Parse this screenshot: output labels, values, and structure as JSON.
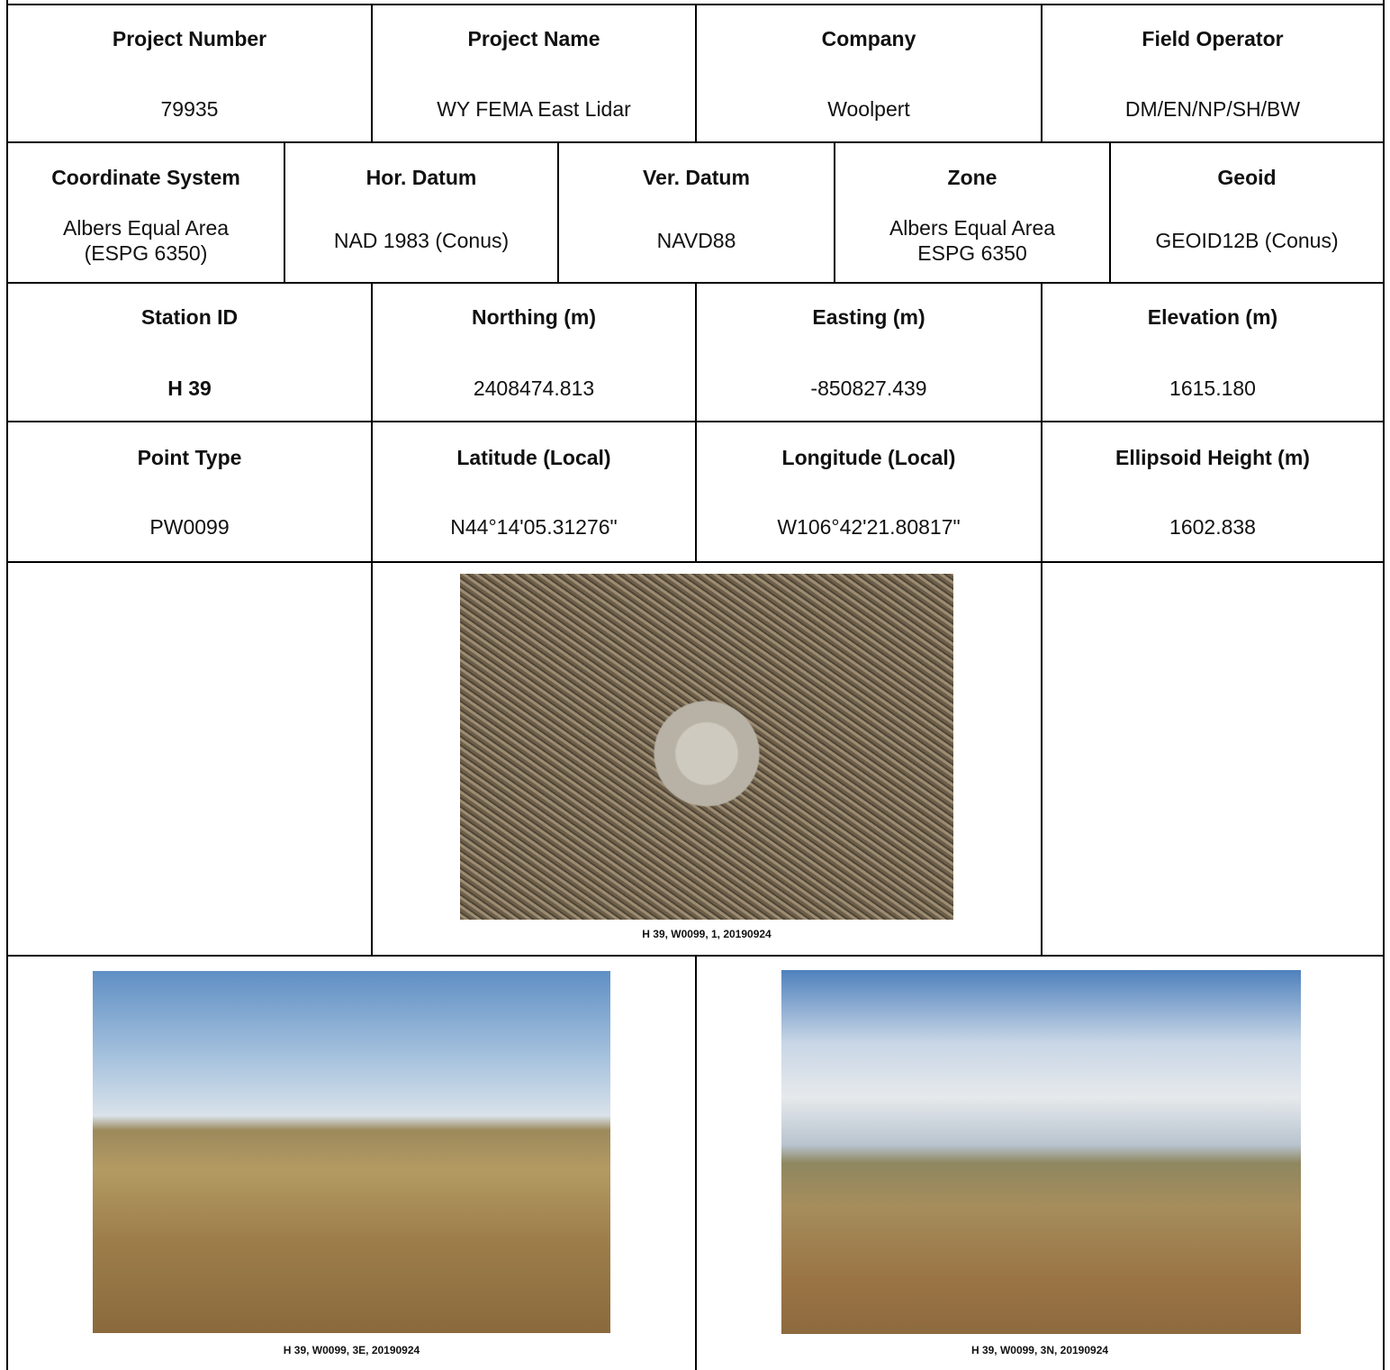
{
  "project_info": {
    "headers": [
      "Project Number",
      "Project Name",
      "Company",
      "Field Operator"
    ],
    "values": [
      "79935",
      "WY FEMA East Lidar",
      "Woolpert",
      "DM/EN/NP/SH/BW"
    ]
  },
  "coordinate_info": {
    "headers": [
      "Coordinate System",
      "Hor. Datum",
      "Ver. Datum",
      "Zone",
      "Geoid"
    ],
    "values": [
      "Albers Equal Area\n(ESPG 6350)",
      "NAD 1983 (Conus)",
      "NAVD88",
      "Albers Equal Area\nESPG 6350",
      "GEOID12B (Conus)"
    ]
  },
  "station_info": {
    "headers": [
      "Station ID",
      "Northing (m)",
      "Easting (m)",
      "Elevation (m)"
    ],
    "values": [
      "H 39",
      "2408474.813",
      "-850827.439",
      "1615.180"
    ]
  },
  "point_info": {
    "headers": [
      "Point Type",
      "Latitude (Local)",
      "Longitude (Local)",
      "Ellipsoid Height (m)"
    ],
    "values": [
      "PW0099",
      "N44°14'05.31276\"",
      "W106°42'21.80817\"",
      "1602.838"
    ]
  },
  "photos": [
    {
      "caption": "H 39, W0099, 1, 20190924"
    },
    {
      "caption": "H 39, W0099, 3E, 20190924"
    },
    {
      "caption": "H 39, W0099, 3N, 20190924"
    }
  ]
}
